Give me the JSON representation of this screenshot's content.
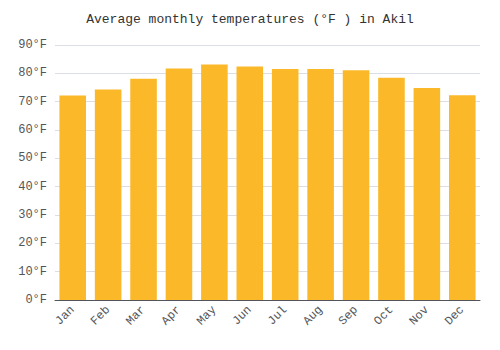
{
  "chart_data": {
    "type": "bar",
    "title": "Average monthly temperatures (°F ) in Akil",
    "categories": [
      "Jan",
      "Feb",
      "Mar",
      "Apr",
      "May",
      "Jun",
      "Jul",
      "Aug",
      "Sep",
      "Oct",
      "Nov",
      "Dec"
    ],
    "values": [
      72.2,
      74.3,
      78.1,
      81.7,
      83.1,
      82.4,
      81.5,
      81.5,
      81.1,
      78.4,
      74.8,
      72.3
    ],
    "color": "#FBB829",
    "ylim": [
      0,
      90
    ],
    "yticks": [
      {
        "value": 0,
        "label": "0°F"
      },
      {
        "value": 10,
        "label": "10°F"
      },
      {
        "value": 20,
        "label": "20°F"
      },
      {
        "value": 30,
        "label": "30°F"
      },
      {
        "value": 40,
        "label": "40°F"
      },
      {
        "value": 50,
        "label": "50°F"
      },
      {
        "value": 60,
        "label": "60°F"
      },
      {
        "value": 70,
        "label": "70°F"
      },
      {
        "value": 80,
        "label": "80°F"
      },
      {
        "value": 90,
        "label": "90°F"
      }
    ],
    "grid": true
  }
}
